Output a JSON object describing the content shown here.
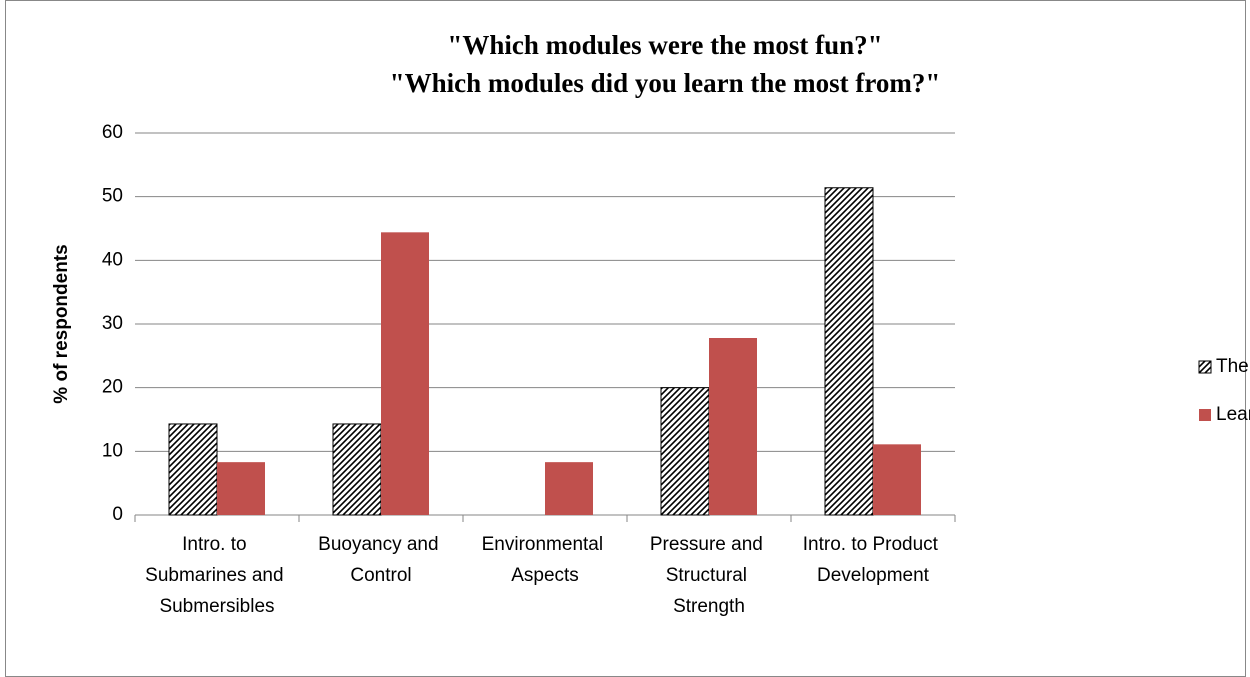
{
  "chart_data": {
    "type": "bar",
    "title": [
      "\"Which modules were the most fun?\"",
      "\"Which modules did you learn the most from?\""
    ],
    "y_label": "% of respondents",
    "categories": [
      "Intro. to Submarines and Submersibles",
      "Buoyancy and Control",
      "Environmental Aspects",
      "Pressure and Structural Strength",
      "Intro. to Product Development"
    ],
    "series": [
      {
        "name": "The most fun",
        "color": "#000000",
        "pattern": "diagonal-hatch",
        "values": [
          14.3,
          14.3,
          0,
          20,
          51.4
        ]
      },
      {
        "name": "Learned most from",
        "color": "#c0504d",
        "values": [
          8.3,
          44.4,
          8.3,
          27.8,
          11.1
        ]
      }
    ],
    "ylim": [
      0,
      60
    ],
    "yticks": [
      0,
      10,
      20,
      30,
      40,
      50,
      60
    ],
    "grid": true,
    "legend": "right"
  }
}
